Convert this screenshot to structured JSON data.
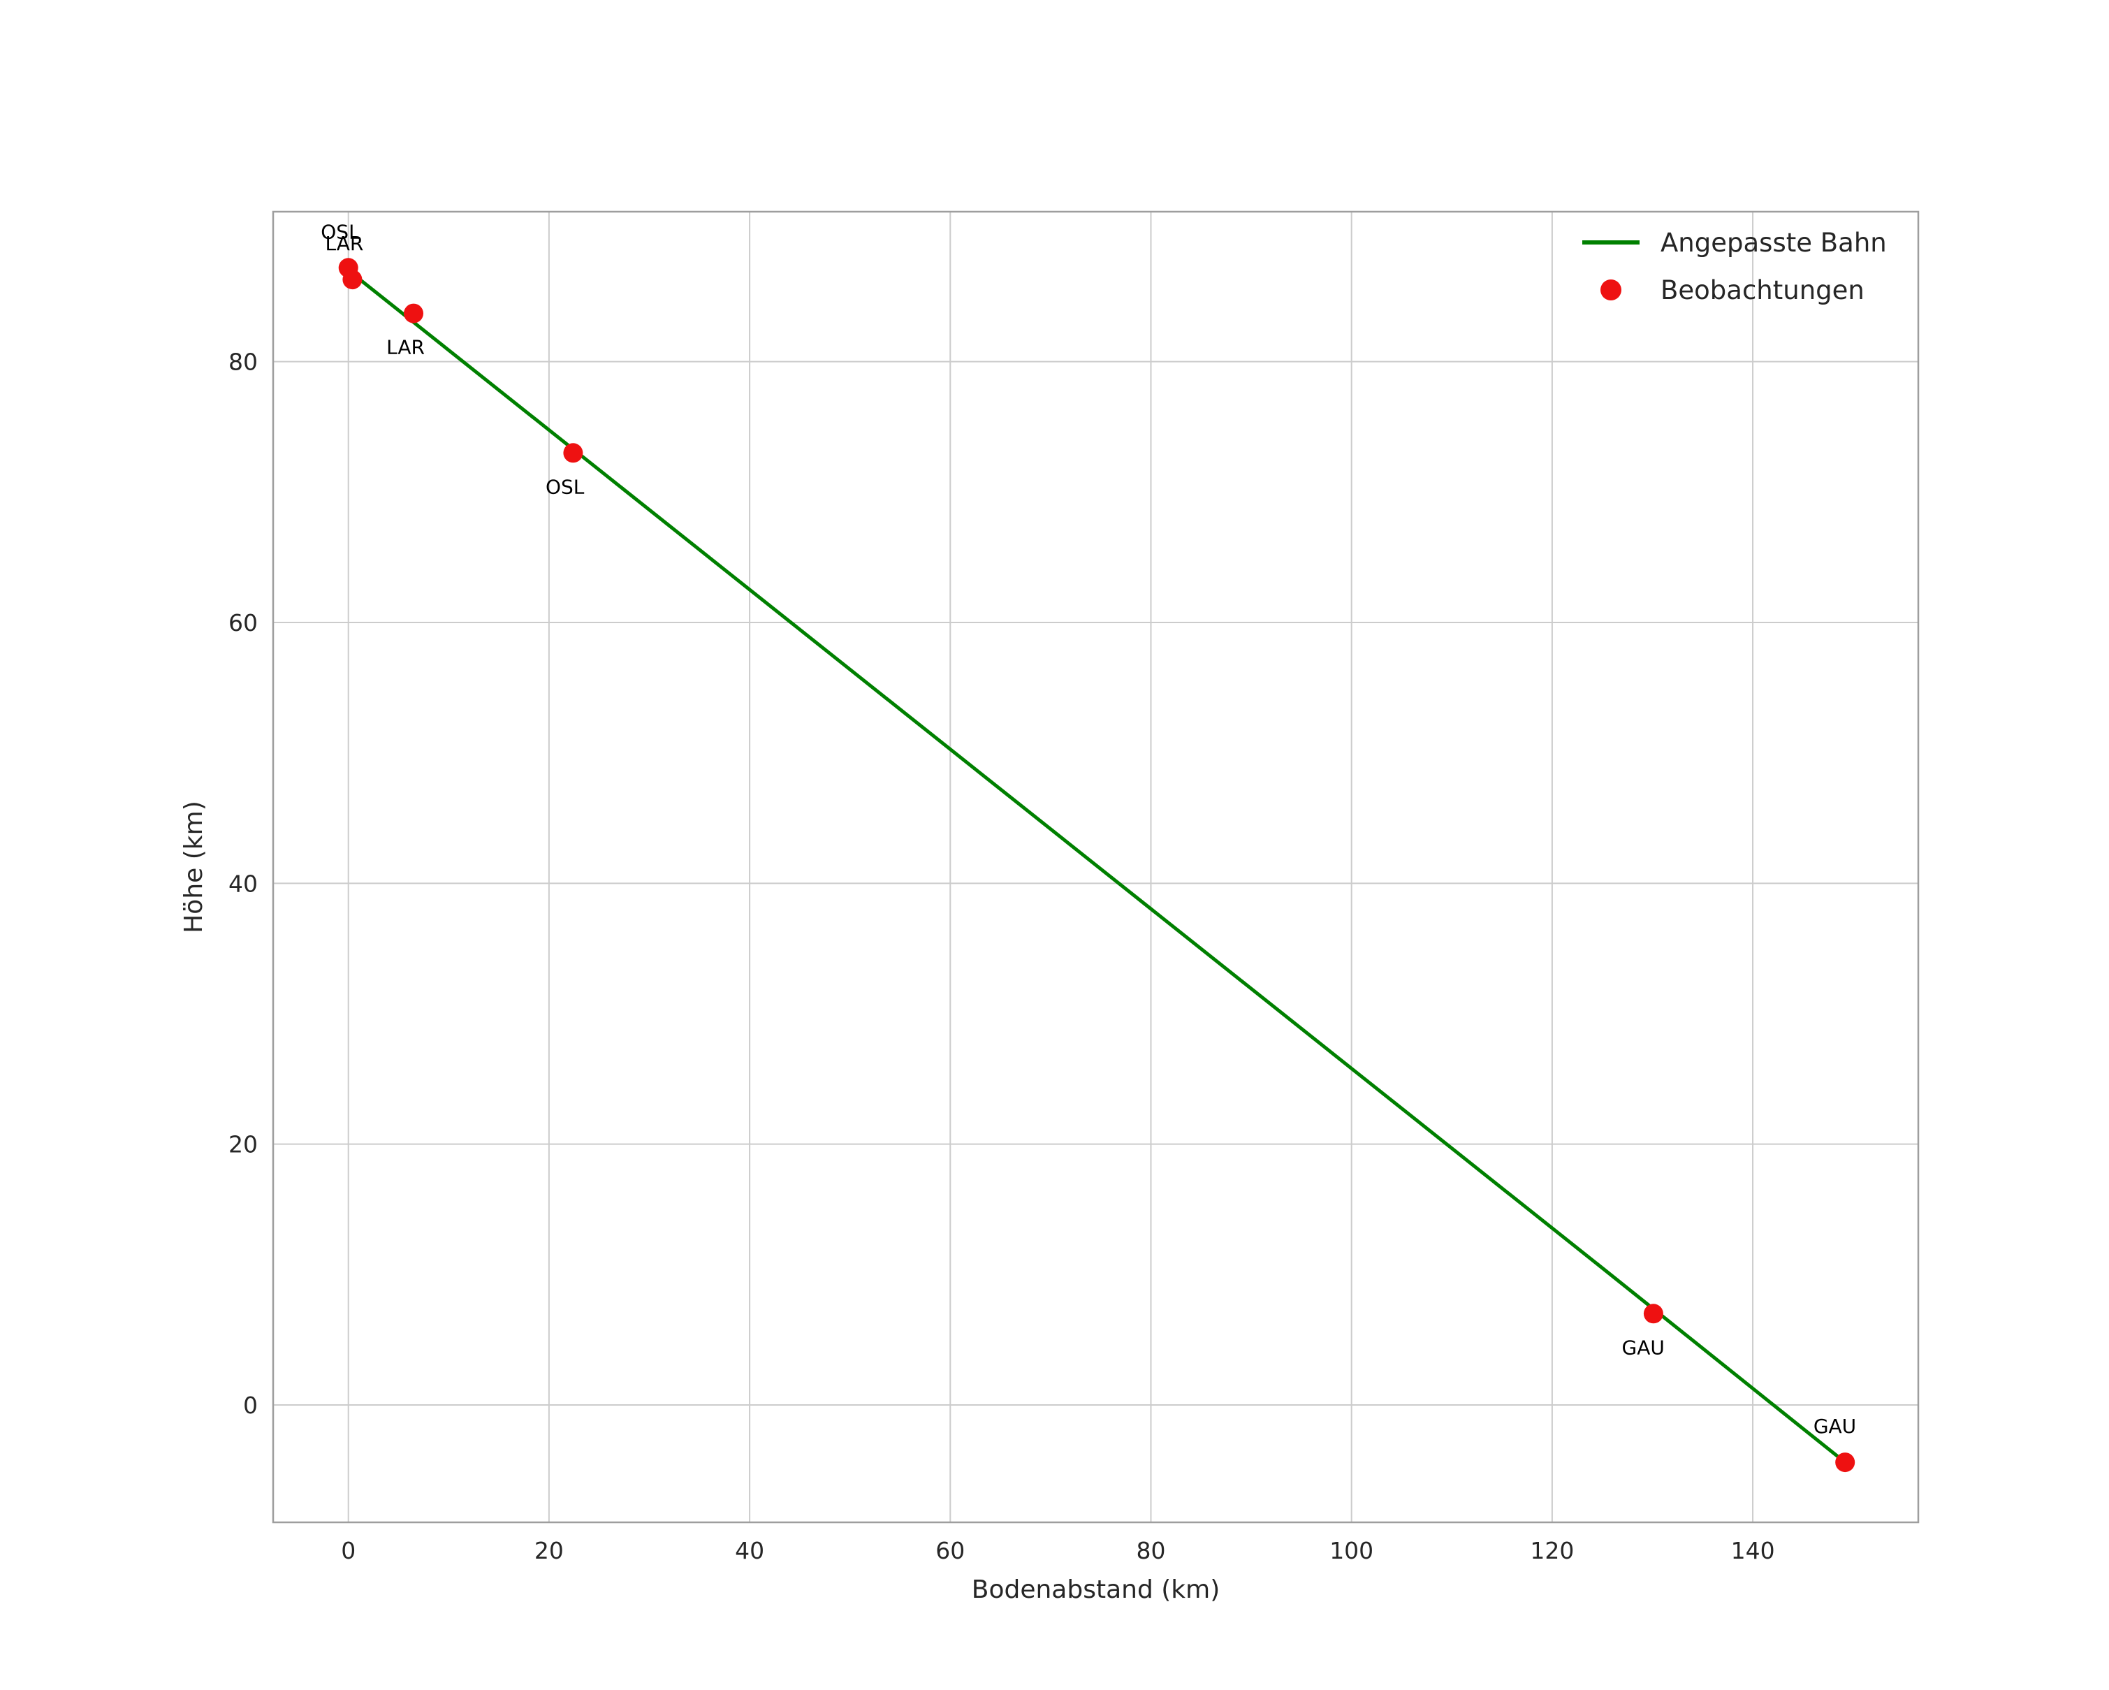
{
  "figure": {
    "background": "#ffffff",
    "grid_color": "#cccccc",
    "spine_color": "#9e9e9e",
    "text_color": "#262626",
    "label_color": "#000000"
  },
  "chart_data": {
    "type": "line+scatter",
    "title": "",
    "xlabel": "Bodenabstand (km)",
    "ylabel": "Höhe (km)",
    "xlim": [
      -7.5,
      156.5
    ],
    "ylim": [
      -9,
      91.5
    ],
    "xticks": [
      0,
      20,
      40,
      60,
      80,
      100,
      120,
      140
    ],
    "yticks": [
      0,
      20,
      40,
      60,
      80
    ],
    "grid": true,
    "legend": {
      "position": "upper right",
      "items": [
        {
          "label": "Angepasste Bahn",
          "type": "line",
          "color": "#008000"
        },
        {
          "label": "Beobachtungen",
          "type": "dot",
          "color": "#ee1111"
        }
      ]
    },
    "series": [
      {
        "name": "Angepasste Bahn",
        "type": "line",
        "color": "#008000",
        "width": 5,
        "points": [
          [
            0,
            87.0
          ],
          [
            25,
            71.7
          ],
          [
            50,
            56.4
          ],
          [
            75,
            41.1
          ],
          [
            100,
            25.8
          ],
          [
            125,
            10.5
          ],
          [
            149.2,
            -4.4
          ]
        ]
      },
      {
        "name": "Beobachtungen",
        "type": "scatter",
        "color": "#ee1111",
        "radius": 14,
        "points": [
          {
            "x": 0.0,
            "y": 87.2,
            "label": "OSL",
            "label_pos": "above"
          },
          {
            "x": 0.4,
            "y": 86.3,
            "label": "LAR",
            "label_pos": "above"
          },
          {
            "x": 6.5,
            "y": 83.7,
            "label": "LAR",
            "label_pos": "below"
          },
          {
            "x": 22.4,
            "y": 73.0,
            "label": "OSL",
            "label_pos": "below"
          },
          {
            "x": 130.1,
            "y": 7.0,
            "label": "GAU",
            "label_pos": "below"
          },
          {
            "x": 149.2,
            "y": -4.4,
            "label": "GAU",
            "label_pos": "above"
          }
        ]
      }
    ]
  }
}
